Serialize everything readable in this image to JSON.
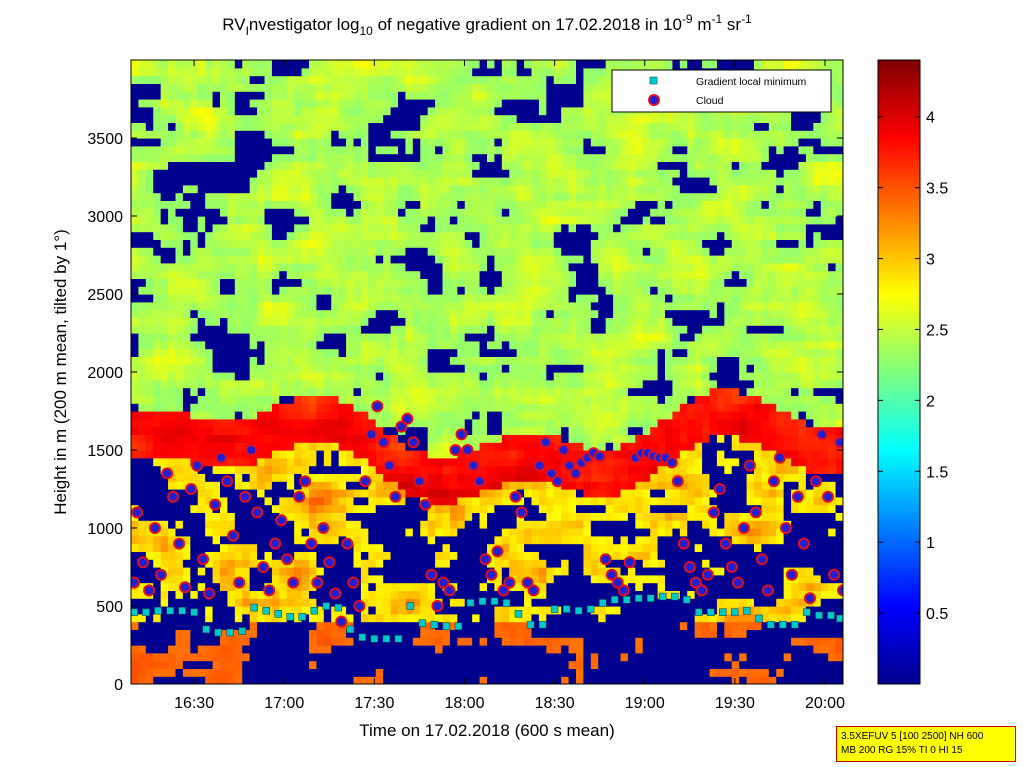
{
  "chart_data": {
    "type": "heatmap",
    "title": {
      "part1": "RV",
      "part1_sub": "I",
      "part2": "nvestigator log",
      "part2_sub": "10",
      "part3": " of negative gradient on 17.02.2018 in 10",
      "part3_sup": "-9",
      "part4": " m",
      "part4_sup": "-1",
      "part5": " sr",
      "part5_sup": "-1"
    },
    "xlabel": "Time on 17.02.2018 (600 s mean)",
    "ylabel": "Height in m (200 m mean, tilted by 1°)",
    "x_ticks": [
      "16:30",
      "17:00",
      "17:30",
      "18:00",
      "18:30",
      "19:00",
      "19:30",
      "20:00"
    ],
    "x_tick_minutes": [
      990,
      1020,
      1050,
      1080,
      1110,
      1140,
      1170,
      1200
    ],
    "xlim_minutes": [
      969,
      1206
    ],
    "y_ticks": [
      0,
      500,
      1000,
      1500,
      2000,
      2500,
      3000,
      3500
    ],
    "ylim": [
      0,
      4000
    ],
    "colorbar": {
      "ticks": [
        0.5,
        1,
        1.5,
        2,
        2.5,
        3,
        3.5,
        4
      ],
      "range": [
        0.0,
        4.4
      ]
    },
    "legend": {
      "placement": "top-right",
      "entries": [
        {
          "label": "Gradient local minimum",
          "marker": "square",
          "color": "#00c8c8"
        },
        {
          "label": "Cloud",
          "marker": "circle",
          "color": "#d01020"
        }
      ]
    },
    "series": [
      {
        "name": "Gradient local minimum",
        "points": [
          [
            970,
            460
          ],
          [
            974,
            460
          ],
          [
            978,
            470
          ],
          [
            982,
            470
          ],
          [
            986,
            470
          ],
          [
            990,
            460
          ],
          [
            994,
            350
          ],
          [
            998,
            330
          ],
          [
            1002,
            330
          ],
          [
            1006,
            340
          ],
          [
            1010,
            490
          ],
          [
            1014,
            470
          ],
          [
            1018,
            450
          ],
          [
            1022,
            430
          ],
          [
            1026,
            430
          ],
          [
            1030,
            470
          ],
          [
            1034,
            500
          ],
          [
            1038,
            490
          ],
          [
            1042,
            350
          ],
          [
            1046,
            300
          ],
          [
            1050,
            290
          ],
          [
            1054,
            290
          ],
          [
            1058,
            290
          ],
          [
            1062,
            500
          ],
          [
            1066,
            390
          ],
          [
            1070,
            380
          ],
          [
            1074,
            370
          ],
          [
            1078,
            370
          ],
          [
            1082,
            520
          ],
          [
            1086,
            530
          ],
          [
            1090,
            530
          ],
          [
            1094,
            520
          ],
          [
            1098,
            450
          ],
          [
            1102,
            380
          ],
          [
            1106,
            380
          ],
          [
            1110,
            480
          ],
          [
            1114,
            480
          ],
          [
            1118,
            470
          ],
          [
            1122,
            480
          ],
          [
            1126,
            520
          ],
          [
            1130,
            540
          ],
          [
            1134,
            540
          ],
          [
            1138,
            550
          ],
          [
            1142,
            550
          ],
          [
            1146,
            560
          ],
          [
            1150,
            560
          ],
          [
            1154,
            540
          ],
          [
            1158,
            460
          ],
          [
            1162,
            460
          ],
          [
            1166,
            460
          ],
          [
            1170,
            460
          ],
          [
            1174,
            470
          ],
          [
            1178,
            420
          ],
          [
            1182,
            380
          ],
          [
            1186,
            380
          ],
          [
            1190,
            380
          ],
          [
            1194,
            460
          ],
          [
            1198,
            440
          ],
          [
            1202,
            440
          ],
          [
            1205,
            420
          ]
        ]
      },
      {
        "name": "Cloud",
        "points": [
          [
            970,
            650
          ],
          [
            971,
            1100
          ],
          [
            973,
            780
          ],
          [
            975,
            600
          ],
          [
            977,
            1000
          ],
          [
            979,
            700
          ],
          [
            981,
            1350
          ],
          [
            983,
            1200
          ],
          [
            985,
            900
          ],
          [
            987,
            620
          ],
          [
            989,
            1250
          ],
          [
            991,
            1400
          ],
          [
            993,
            800
          ],
          [
            995,
            580
          ],
          [
            997,
            1150
          ],
          [
            999,
            1450
          ],
          [
            1001,
            1300
          ],
          [
            1003,
            950
          ],
          [
            1005,
            650
          ],
          [
            1007,
            1200
          ],
          [
            1009,
            1500
          ],
          [
            1011,
            1100
          ],
          [
            1013,
            750
          ],
          [
            1015,
            600
          ],
          [
            1017,
            900
          ],
          [
            1019,
            1050
          ],
          [
            1021,
            800
          ],
          [
            1023,
            650
          ],
          [
            1025,
            1200
          ],
          [
            1027,
            1300
          ],
          [
            1029,
            900
          ],
          [
            1031,
            650
          ],
          [
            1033,
            1000
          ],
          [
            1035,
            780
          ],
          [
            1037,
            580
          ],
          [
            1039,
            400
          ],
          [
            1041,
            900
          ],
          [
            1043,
            650
          ],
          [
            1045,
            500
          ],
          [
            1047,
            1300
          ],
          [
            1049,
            1600
          ],
          [
            1051,
            1780
          ],
          [
            1053,
            1550
          ],
          [
            1055,
            1400
          ],
          [
            1057,
            1200
          ],
          [
            1059,
            1650
          ],
          [
            1061,
            1700
          ],
          [
            1063,
            1550
          ],
          [
            1065,
            1300
          ],
          [
            1067,
            1150
          ],
          [
            1069,
            700
          ],
          [
            1071,
            500
          ],
          [
            1073,
            650
          ],
          [
            1075,
            600
          ],
          [
            1077,
            1500
          ],
          [
            1079,
            1600
          ],
          [
            1081,
            1500
          ],
          [
            1083,
            1400
          ],
          [
            1085,
            1300
          ],
          [
            1087,
            800
          ],
          [
            1089,
            700
          ],
          [
            1091,
            850
          ],
          [
            1093,
            600
          ],
          [
            1095,
            650
          ],
          [
            1097,
            1200
          ],
          [
            1099,
            1100
          ],
          [
            1101,
            650
          ],
          [
            1103,
            600
          ],
          [
            1105,
            1400
          ],
          [
            1107,
            1550
          ],
          [
            1109,
            1350
          ],
          [
            1111,
            1300
          ],
          [
            1113,
            1500
          ],
          [
            1115,
            1400
          ],
          [
            1117,
            1350
          ],
          [
            1119,
            1420
          ],
          [
            1121,
            1450
          ],
          [
            1123,
            1480
          ],
          [
            1125,
            1460
          ],
          [
            1127,
            800
          ],
          [
            1129,
            700
          ],
          [
            1131,
            650
          ],
          [
            1133,
            600
          ],
          [
            1135,
            780
          ],
          [
            1137,
            1450
          ],
          [
            1139,
            1480
          ],
          [
            1141,
            1480
          ],
          [
            1143,
            1460
          ],
          [
            1145,
            1450
          ],
          [
            1147,
            1450
          ],
          [
            1149,
            1420
          ],
          [
            1151,
            1300
          ],
          [
            1153,
            900
          ],
          [
            1155,
            750
          ],
          [
            1157,
            650
          ],
          [
            1159,
            600
          ],
          [
            1161,
            700
          ],
          [
            1163,
            1100
          ],
          [
            1165,
            1250
          ],
          [
            1167,
            900
          ],
          [
            1169,
            750
          ],
          [
            1171,
            650
          ],
          [
            1173,
            1000
          ],
          [
            1175,
            1400
          ],
          [
            1177,
            1100
          ],
          [
            1179,
            800
          ],
          [
            1181,
            600
          ],
          [
            1183,
            1300
          ],
          [
            1185,
            1450
          ],
          [
            1187,
            1000
          ],
          [
            1189,
            700
          ],
          [
            1191,
            1200
          ],
          [
            1193,
            900
          ],
          [
            1195,
            550
          ],
          [
            1197,
            1300
          ],
          [
            1199,
            1600
          ],
          [
            1201,
            1200
          ],
          [
            1203,
            700
          ],
          [
            1205,
            1550
          ],
          [
            1206,
            600
          ]
        ]
      }
    ]
  },
  "info_box": {
    "line1": "3.5XEFUV 5 [100 2500] NH 600",
    "line2": "MB 200 RG 15% TI 0 HI 15"
  }
}
